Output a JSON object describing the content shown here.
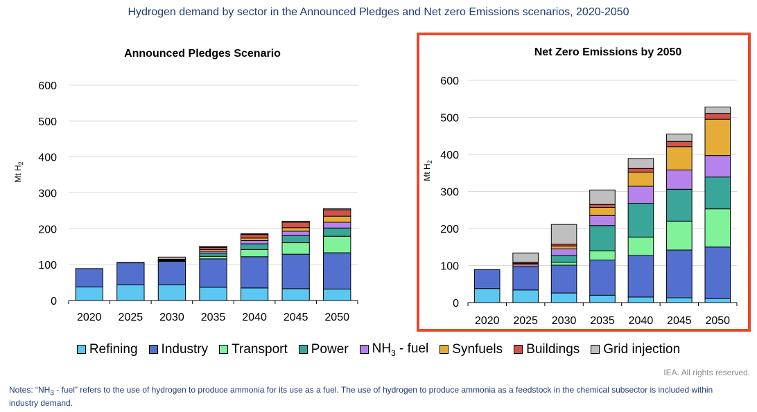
{
  "title": "Hydrogen demand by sector in the Announced Pledges and Net zero Emissions scenarios, 2020-2050",
  "copyright": "IEA. All rights reserved.",
  "notes": {
    "prefix": "Notes: “NH",
    "sub": "3",
    "suffix": " - fuel” refers to the use of hydrogen to produce ammonia for its use as a fuel. The use of hydrogen to produce ammonia as a feedstock in the chemical subsector is included within industry demand."
  },
  "colors": {
    "Refining": "#5cc8f2",
    "Industry": "#5470cf",
    "Transport": "#7ff29a",
    "Power": "#3aa69a",
    "NH3 - fuel": "#b583eb",
    "Synfuels": "#e6ac38",
    "Buildings": "#d0524a",
    "Grid injection": "#bfbfbf",
    "highlight": "#e8482a"
  },
  "legend": [
    {
      "key": "Refining",
      "label": "Refining"
    },
    {
      "key": "Industry",
      "label": "Industry"
    },
    {
      "key": "Transport",
      "label": "Transport"
    },
    {
      "key": "Power",
      "label": "Power"
    },
    {
      "key": "NH3 - fuel",
      "label": "NH",
      "sub": "3",
      "suffix": " - fuel"
    },
    {
      "key": "Synfuels",
      "label": "Synfuels"
    },
    {
      "key": "Buildings",
      "label": "Buildings"
    },
    {
      "key": "Grid injection",
      "label": "Grid injection"
    }
  ],
  "chart_data": [
    {
      "type": "bar",
      "stacked": true,
      "title": "Announced Pledges Scenario",
      "ylabel": "Mt H",
      "ylabel_sub": "2",
      "ylim": [
        0,
        600
      ],
      "yticks": [
        0,
        100,
        200,
        300,
        400,
        500,
        600
      ],
      "grid": true,
      "highlighted": false,
      "categories": [
        "2020",
        "2025",
        "2030",
        "2035",
        "2040",
        "2045",
        "2050"
      ],
      "series": [
        {
          "name": "Refining",
          "values": [
            38,
            44,
            44,
            37,
            35,
            33,
            32
          ]
        },
        {
          "name": "Industry",
          "values": [
            51,
            61,
            65,
            79,
            87,
            96,
            101
          ]
        },
        {
          "name": "Transport",
          "values": [
            0,
            0,
            1,
            7,
            20,
            32,
            46
          ]
        },
        {
          "name": "Power",
          "values": [
            0,
            0,
            2,
            9,
            16,
            20,
            23
          ]
        },
        {
          "name": "NH3 - fuel",
          "values": [
            0,
            0,
            1,
            5,
            9,
            12,
            16
          ]
        },
        {
          "name": "Synfuels",
          "values": [
            0,
            0,
            1,
            5,
            7,
            10,
            17
          ]
        },
        {
          "name": "Buildings",
          "values": [
            0,
            0,
            1,
            6,
            10,
            15,
            18
          ]
        },
        {
          "name": "Grid injection",
          "values": [
            0,
            1,
            6,
            3,
            2,
            3,
            3
          ]
        }
      ]
    },
    {
      "type": "bar",
      "stacked": true,
      "title": "Net Zero Emissions by 2050",
      "ylabel": "Mt H",
      "ylabel_sub": "2",
      "ylim": [
        0,
        600
      ],
      "yticks": [
        0,
        100,
        200,
        300,
        400,
        500,
        600
      ],
      "grid": true,
      "highlighted": true,
      "categories": [
        "2020",
        "2025",
        "2030",
        "2035",
        "2040",
        "2045",
        "2050"
      ],
      "series": [
        {
          "name": "Refining",
          "values": [
            38,
            34,
            26,
            20,
            15,
            13,
            11
          ]
        },
        {
          "name": "Industry",
          "values": [
            51,
            63,
            75,
            95,
            112,
            129,
            139
          ]
        },
        {
          "name": "Transport",
          "values": [
            0,
            0,
            8,
            25,
            50,
            78,
            103
          ]
        },
        {
          "name": "Power",
          "values": [
            0,
            0,
            18,
            68,
            91,
            86,
            86
          ]
        },
        {
          "name": "NH3 - fuel",
          "values": [
            0,
            5,
            18,
            27,
            46,
            52,
            58
          ]
        },
        {
          "name": "Synfuels",
          "values": [
            0,
            4,
            8,
            22,
            38,
            63,
            98
          ]
        },
        {
          "name": "Buildings",
          "values": [
            0,
            3,
            5,
            8,
            10,
            14,
            16
          ]
        },
        {
          "name": "Grid injection",
          "values": [
            0,
            25,
            53,
            39,
            27,
            20,
            17
          ]
        }
      ]
    }
  ]
}
